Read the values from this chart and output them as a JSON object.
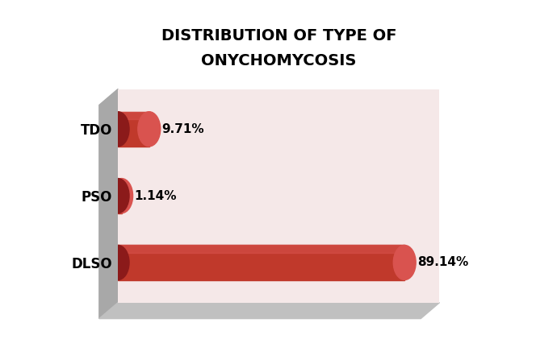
{
  "title_line1": "DISTRIBUTION OF TYPE OF",
  "title_line2": "ONYCHOMYCOSIS",
  "categories": [
    "DLSO",
    "PSO",
    "TDO"
  ],
  "values": [
    89.14,
    1.14,
    9.71
  ],
  "labels": [
    "89.14%",
    "1.14%",
    "9.71%"
  ],
  "bar_color_face": "#c0392b",
  "bar_color_light": "#d9534f",
  "bar_color_dark": "#8b1a1a",
  "bar_color_top": "#c9534f",
  "background_plot": "#f5e8e8",
  "background_fig": "#ffffff",
  "gray_side": "#a8a8a8",
  "gray_bottom": "#c0c0c0",
  "title_fontsize": 14,
  "label_fontsize": 11,
  "tick_fontsize": 12,
  "max_val": 100
}
